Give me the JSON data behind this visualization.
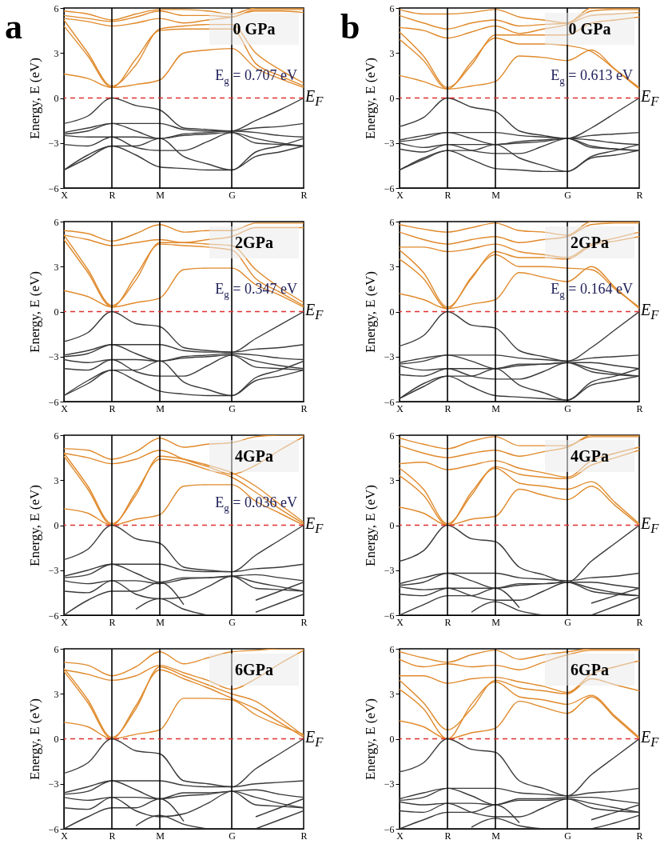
{
  "chart_data": [
    {
      "type": "line",
      "title": "0 GPa",
      "ylabel": "Energy, E (eV)",
      "categories": [
        "X",
        null,
        "R",
        null,
        "M",
        null,
        null,
        "G",
        null,
        null,
        "R"
      ],
      "ylim": [
        -6,
        6
      ],
      "yticks": [
        -6,
        -3,
        0,
        3,
        6
      ],
      "series": [
        {
          "color": "#e08a2c",
          "values": [
            1.6,
            1.3,
            0.7,
            0.9,
            1.2,
            3.0,
            3.2,
            3.3,
            2.0,
            1.3,
            0.7
          ]
        },
        {
          "color": "#e08a2c",
          "values": [
            4.8,
            2.8,
            0.7,
            2.6,
            4.5,
            4.6,
            4.6,
            4.6,
            2.3,
            1.5,
            0.8
          ]
        },
        {
          "color": "#e08a2c",
          "values": [
            5.2,
            3.0,
            0.8,
            2.2,
            4.6,
            4.8,
            4.9,
            4.9,
            3.0,
            1.9,
            1.0
          ]
        },
        {
          "color": "#e08a2c",
          "values": [
            5.3,
            5.1,
            4.8,
            5.0,
            5.3,
            5.0,
            5.2,
            5.4,
            5.8,
            5.8,
            5.7
          ]
        },
        {
          "color": "#e08a2c",
          "values": [
            5.5,
            5.3,
            5.1,
            5.4,
            5.8,
            5.5,
            5.5,
            5.4,
            5.9,
            5.9,
            5.9
          ]
        },
        {
          "color": "#e08a2c",
          "values": [
            5.8,
            5.6,
            5.2,
            5.6,
            5.9,
            5.9,
            5.8,
            5.6,
            6,
            6,
            6
          ]
        },
        {
          "color": "#3a3a3a",
          "values": [
            -1.7,
            -1.2,
            0,
            -0.5,
            -0.8,
            -2.0,
            -2.1,
            -2.2,
            -1.5,
            -0.8,
            0
          ]
        },
        {
          "color": "#3a3a3a",
          "values": [
            -2.3,
            -2.0,
            -1.7,
            -1.7,
            -1.7,
            -2.1,
            -2.2,
            -2.2,
            -2.0,
            -1.9,
            -1.7
          ]
        },
        {
          "color": "#3a3a3a",
          "values": [
            -2.4,
            -2.2,
            -1.7,
            -2.2,
            -2.7,
            -2.4,
            -2.3,
            -2.2,
            -2.3,
            -2.5,
            -2.6
          ]
        },
        {
          "color": "#3a3a3a",
          "values": [
            -2.5,
            -2.6,
            -2.6,
            -2.6,
            -2.7,
            -2.5,
            -2.4,
            -2.3,
            -2.7,
            -3.0,
            -3.2
          ]
        },
        {
          "color": "#3a3a3a",
          "values": [
            -3.1,
            -3.2,
            -2.6,
            -3.3,
            -3.5,
            -3.5,
            -2.9,
            -2.3,
            -3.0,
            -3.1,
            -3.2
          ]
        },
        {
          "color": "#3a3a3a",
          "values": [
            -4.8,
            -3.8,
            -3.2,
            -3.2,
            -2.7,
            -3.9,
            -4.4,
            -4.8,
            -3.6,
            -3.2,
            -2.7
          ]
        },
        {
          "color": "#3a3a3a",
          "values": [
            -4.8,
            -4.0,
            -3.2,
            -3.8,
            -4.6,
            -4.7,
            -4.8,
            -4.8,
            -3.9,
            -3.6,
            -3.2
          ]
        }
      ],
      "ref_lines": [
        {
          "axis": "x",
          "value": "R",
          "color": "#000000"
        },
        {
          "axis": "x",
          "value": "M",
          "color": "#000000"
        },
        {
          "axis": "x",
          "value": "G",
          "color": "#000000"
        },
        {
          "axis": "y",
          "value": 0,
          "label": "E$_{F}$",
          "color": "#e03030",
          "line_style": "dashed"
        }
      ],
      "subtitle": "a",
      "annotations": [
        "E$_{g}$ = 0.707 eV"
      ]
    },
    {
      "type": "line",
      "title": "0 GPa",
      "ylabel": "Energy, E (eV)",
      "categories": [
        "X",
        null,
        "R",
        null,
        "M",
        null,
        null,
        "G",
        null,
        null,
        "R"
      ],
      "ylim": [
        -6,
        6
      ],
      "yticks": [
        -6,
        -3,
        0,
        3,
        6
      ],
      "series": [
        {
          "color": "#e08a2c",
          "values": [
            1.5,
            1.1,
            0.6,
            0.8,
            1.1,
            2.8,
            2.7,
            2.5,
            3.2,
            1.9,
            0.6
          ]
        },
        {
          "color": "#e08a2c",
          "values": [
            3.9,
            2.5,
            0.6,
            2.4,
            4.0,
            3.6,
            3.6,
            3.5,
            3.1,
            1.9,
            0.7
          ]
        },
        {
          "color": "#e08a2c",
          "values": [
            4.4,
            2.8,
            0.7,
            2.2,
            4.2,
            4.2,
            4.2,
            4.2,
            5.0,
            5.2,
            5.4
          ]
        },
        {
          "color": "#e08a2c",
          "values": [
            4.7,
            4.5,
            4.0,
            4.4,
            4.8,
            4.3,
            4.6,
            4.9,
            5.5,
            5.6,
            5.7
          ]
        },
        {
          "color": "#e08a2c",
          "values": [
            5.5,
            5.0,
            4.6,
            5.0,
            5.2,
            4.8,
            4.9,
            5.0,
            5.8,
            5.9,
            5.9
          ]
        },
        {
          "color": "#e08a2c",
          "values": [
            5.9,
            5.6,
            5.6,
            5.7,
            5.9,
            5.4,
            5.2,
            5.0,
            6.0,
            6.0,
            6.0
          ]
        },
        {
          "color": "#3a3a3a",
          "values": [
            -1.9,
            -1.3,
            0,
            -0.6,
            -0.9,
            -2.2,
            -2.5,
            -2.7,
            -2.0,
            -1.0,
            0
          ]
        },
        {
          "color": "#3a3a3a",
          "values": [
            -2.8,
            -2.5,
            -2.3,
            -2.3,
            -2.3,
            -2.5,
            -2.6,
            -2.7,
            -2.5,
            -2.4,
            -2.3
          ]
        },
        {
          "color": "#3a3a3a",
          "values": [
            -2.9,
            -2.7,
            -2.3,
            -2.7,
            -3.1,
            -2.9,
            -2.8,
            -2.7,
            -2.8,
            -3.0,
            -3.1
          ]
        },
        {
          "color": "#3a3a3a",
          "values": [
            -3.0,
            -3.3,
            -3.1,
            -3.1,
            -3.1,
            -3.0,
            -2.9,
            -2.7,
            -3.2,
            -3.4,
            -3.5
          ]
        },
        {
          "color": "#3a3a3a",
          "values": [
            -3.4,
            -3.6,
            -3.1,
            -3.5,
            -3.7,
            -3.7,
            -3.2,
            -2.7,
            -3.3,
            -3.4,
            -3.5
          ]
        },
        {
          "color": "#3a3a3a",
          "values": [
            -4.8,
            -4.0,
            -3.5,
            -3.5,
            -3.1,
            -4.0,
            -4.5,
            -4.9,
            -3.9,
            -3.5,
            -3.1
          ]
        },
        {
          "color": "#3a3a3a",
          "values": [
            -4.8,
            -4.1,
            -3.5,
            -4.1,
            -4.7,
            -4.8,
            -4.9,
            -4.9,
            -4.0,
            -3.8,
            -3.5
          ]
        }
      ],
      "ref_lines": [
        {
          "axis": "x",
          "value": "R",
          "color": "#000000"
        },
        {
          "axis": "x",
          "value": "M",
          "color": "#000000"
        },
        {
          "axis": "x",
          "value": "G",
          "color": "#000000"
        },
        {
          "axis": "y",
          "value": 0,
          "label": "E$_{F}$",
          "color": "#e03030",
          "line_style": "dashed"
        }
      ],
      "subtitle": "b",
      "annotations": [
        "E$_{g}$ = 0.613 eV"
      ]
    },
    {
      "type": "line",
      "title": "2GPa",
      "ylabel": "Energy, E (eV)",
      "categories": [
        "X",
        null,
        "R",
        null,
        "M",
        null,
        null,
        "G",
        null,
        null,
        "R"
      ],
      "ylim": [
        -6,
        6
      ],
      "yticks": [
        -6,
        -3,
        0,
        3,
        6
      ],
      "series": [
        {
          "color": "#e08a2c",
          "values": [
            1.4,
            1.0,
            0.3,
            0.6,
            0.9,
            2.8,
            2.9,
            2.9,
            1.8,
            1.1,
            0.3
          ]
        },
        {
          "color": "#e08a2c",
          "values": [
            4.8,
            2.6,
            0.3,
            2.4,
            4.5,
            4.4,
            4.3,
            4.1,
            2.2,
            1.3,
            0.4
          ]
        },
        {
          "color": "#e08a2c",
          "values": [
            5.1,
            2.8,
            0.4,
            2.1,
            4.6,
            4.6,
            4.5,
            4.4,
            2.8,
            1.6,
            0.6
          ]
        },
        {
          "color": "#e08a2c",
          "values": [
            5.1,
            4.8,
            4.4,
            4.6,
            4.8,
            4.6,
            4.8,
            5.0,
            5.6,
            5.6,
            5.6
          ]
        },
        {
          "color": "#e08a2c",
          "values": [
            5.4,
            5.2,
            4.7,
            5.2,
            5.8,
            5.3,
            5.4,
            5.4,
            5.9,
            5.9,
            5.9
          ]
        },
        {
          "color": "#3a3a3a",
          "values": [
            -2.0,
            -1.4,
            0,
            -0.8,
            -1.0,
            -2.4,
            -2.6,
            -2.7,
            -1.8,
            -0.9,
            0
          ]
        },
        {
          "color": "#3a3a3a",
          "values": [
            -2.9,
            -2.6,
            -2.2,
            -2.2,
            -2.2,
            -2.6,
            -2.7,
            -2.7,
            -2.5,
            -2.4,
            -2.2
          ]
        },
        {
          "color": "#3a3a3a",
          "values": [
            -3.0,
            -2.8,
            -2.2,
            -2.8,
            -3.3,
            -3.0,
            -2.9,
            -2.8,
            -2.9,
            -3.1,
            -3.2
          ]
        },
        {
          "color": "#3a3a3a",
          "values": [
            -3.2,
            -3.4,
            -3.2,
            -3.2,
            -3.3,
            -3.1,
            -3.0,
            -2.9,
            -3.3,
            -3.6,
            -3.8
          ]
        },
        {
          "color": "#3a3a3a",
          "values": [
            -3.8,
            -3.9,
            -3.2,
            -4.0,
            -4.3,
            -4.3,
            -3.6,
            -2.9,
            -3.7,
            -3.8,
            -3.9
          ]
        },
        {
          "color": "#3a3a3a",
          "values": [
            -5.6,
            -4.6,
            -3.9,
            -3.9,
            -3.3,
            -4.7,
            -5.2,
            -5.6,
            -4.4,
            -3.9,
            -3.3
          ]
        },
        {
          "color": "#3a3a3a",
          "values": [
            -5.6,
            -4.8,
            -3.9,
            -4.6,
            -5.3,
            -5.5,
            -5.6,
            -5.6,
            -4.6,
            -4.3,
            -3.9
          ]
        }
      ],
      "ref_lines": [
        {
          "axis": "x",
          "value": "R",
          "color": "#000000"
        },
        {
          "axis": "x",
          "value": "M",
          "color": "#000000"
        },
        {
          "axis": "x",
          "value": "G",
          "color": "#000000"
        },
        {
          "axis": "y",
          "value": 0,
          "label": "E$_{F}$",
          "color": "#e03030",
          "line_style": "dashed"
        }
      ],
      "annotations": [
        "E$_{g}$ = 0.347 eV"
      ]
    },
    {
      "type": "line",
      "title": "2GPa",
      "ylabel": "Energy, E (eV)",
      "categories": [
        "X",
        null,
        "R",
        null,
        "M",
        null,
        null,
        "G",
        null,
        null,
        "R"
      ],
      "ylim": [
        -6,
        6
      ],
      "yticks": [
        -6,
        -3,
        0,
        3,
        6
      ],
      "series": [
        {
          "color": "#e08a2c",
          "values": [
            1.2,
            0.8,
            0.2,
            0.5,
            0.8,
            2.6,
            2.3,
            2.0,
            3.0,
            1.6,
            0.2
          ]
        },
        {
          "color": "#e08a2c",
          "values": [
            3.5,
            2.2,
            0.2,
            2.3,
            3.8,
            3.0,
            3.0,
            2.9,
            2.8,
            1.5,
            0.3
          ]
        },
        {
          "color": "#e08a2c",
          "values": [
            4.1,
            2.6,
            0.3,
            2.2,
            4.0,
            3.6,
            3.6,
            3.5,
            4.4,
            4.7,
            5.0
          ]
        },
        {
          "color": "#e08a2c",
          "values": [
            4.3,
            4.3,
            4.0,
            4.2,
            4.5,
            4.0,
            3.8,
            3.6,
            4.5,
            4.9,
            5.3
          ]
        },
        {
          "color": "#e08a2c",
          "values": [
            5.3,
            4.8,
            4.5,
            4.8,
            5.0,
            4.6,
            4.8,
            5.0,
            5.8,
            5.9,
            5.9
          ]
        },
        {
          "color": "#e08a2c",
          "values": [
            5.8,
            5.5,
            5.3,
            5.6,
            5.9,
            5.4,
            5.3,
            5.1,
            6.0,
            6.0,
            6.0
          ]
        },
        {
          "color": "#3a3a3a",
          "values": [
            -2.3,
            -1.6,
            0,
            -0.9,
            -1.1,
            -2.6,
            -3.0,
            -3.3,
            -2.4,
            -1.2,
            0
          ]
        },
        {
          "color": "#3a3a3a",
          "values": [
            -3.4,
            -3.1,
            -2.9,
            -2.9,
            -2.9,
            -3.1,
            -3.2,
            -3.3,
            -3.1,
            -3.0,
            -2.9
          ]
        },
        {
          "color": "#3a3a3a",
          "values": [
            -3.5,
            -3.3,
            -2.9,
            -3.3,
            -3.8,
            -3.5,
            -3.5,
            -3.4,
            -3.4,
            -3.6,
            -3.8
          ]
        },
        {
          "color": "#3a3a3a",
          "values": [
            -3.6,
            -3.9,
            -3.8,
            -3.8,
            -3.8,
            -3.6,
            -3.5,
            -3.4,
            -3.8,
            -4.1,
            -4.3
          ]
        },
        {
          "color": "#3a3a3a",
          "values": [
            -4.2,
            -4.3,
            -3.8,
            -4.3,
            -4.5,
            -4.5,
            -4.0,
            -3.4,
            -4.0,
            -4.2,
            -4.3
          ]
        },
        {
          "color": "#3a3a3a",
          "values": [
            -5.8,
            -4.8,
            -4.3,
            -4.3,
            -3.8,
            -4.9,
            -5.4,
            -5.9,
            -4.7,
            -4.3,
            -3.8
          ]
        },
        {
          "color": "#3a3a3a",
          "values": [
            -5.8,
            -5.0,
            -4.3,
            -5.0,
            -5.6,
            -5.7,
            -5.8,
            -5.9,
            -4.9,
            -4.6,
            -4.3
          ]
        }
      ],
      "ref_lines": [
        {
          "axis": "x",
          "value": "R",
          "color": "#000000"
        },
        {
          "axis": "x",
          "value": "M",
          "color": "#000000"
        },
        {
          "axis": "x",
          "value": "G",
          "color": "#000000"
        },
        {
          "axis": "y",
          "value": 0,
          "label": "E$_{F}$",
          "color": "#e03030",
          "line_style": "dashed"
        }
      ],
      "annotations": [
        "E$_{g}$ = 0.164 eV"
      ]
    },
    {
      "type": "line",
      "title": "4GPa",
      "ylabel": "Energy, E (eV)",
      "categories": [
        "X",
        null,
        "R",
        null,
        "M",
        null,
        null,
        "G",
        null,
        null,
        "R"
      ],
      "ylim": [
        -6,
        6
      ],
      "yticks": [
        -6,
        -3,
        0,
        3,
        6
      ],
      "series": [
        {
          "color": "#e08a2c",
          "values": [
            1.1,
            0.8,
            0,
            0.4,
            0.7,
            2.6,
            2.7,
            2.7,
            1.6,
            0.8,
            0
          ]
        },
        {
          "color": "#e08a2c",
          "values": [
            4.6,
            2.4,
            0,
            2.2,
            4.4,
            4.2,
            3.7,
            3.2,
            2.2,
            1.1,
            0.1
          ]
        },
        {
          "color": "#e08a2c",
          "values": [
            4.8,
            2.6,
            0.1,
            2.0,
            4.6,
            4.4,
            4.0,
            3.5,
            2.6,
            1.4,
            0.2
          ]
        },
        {
          "color": "#e08a2c",
          "values": [
            4.8,
            4.5,
            4.1,
            4.4,
            5.0,
            4.4,
            3.9,
            3.4,
            4.0,
            5.0,
            5.9
          ]
        },
        {
          "color": "#e08a2c",
          "values": [
            5.1,
            5.0,
            4.4,
            4.9,
            5.8,
            5.2,
            5.4,
            5.5,
            5.9,
            6.0,
            6.0
          ]
        },
        {
          "color": "#3a3a3a",
          "values": [
            -2.3,
            -1.6,
            0,
            -0.9,
            -1.2,
            -2.8,
            -3.0,
            -3.1,
            -2.0,
            -1.0,
            0
          ]
        },
        {
          "color": "#3a3a3a",
          "values": [
            -3.4,
            -3.0,
            -2.6,
            -2.6,
            -2.6,
            -3.0,
            -3.1,
            -3.1,
            -2.9,
            -2.8,
            -2.6
          ]
        },
        {
          "color": "#3a3a3a",
          "values": [
            -3.5,
            -3.3,
            -2.6,
            -3.2,
            -3.8,
            -3.5,
            -3.5,
            -3.4,
            -3.3,
            -3.5,
            -3.7
          ]
        },
        {
          "color": "#3a3a3a",
          "values": [
            -3.7,
            -3.9,
            -3.7,
            -3.7,
            -3.9,
            -3.6,
            -3.5,
            -3.4,
            -3.8,
            -4.1,
            -4.4
          ]
        },
        {
          "color": "#3a3a3a",
          "values": [
            -4.4,
            -4.5,
            -3.7,
            -4.6,
            -4.9,
            -4.8,
            -4.1,
            -3.4,
            -4.2,
            -4.3,
            -4.4
          ]
        },
        {
          "color": "#3a3a3a",
          "values": [
            -6,
            -5.0,
            -4.4,
            -4.4,
            -3.8,
            -5.3,
            null,
            null,
            -5.0,
            -4.4,
            -3.8
          ]
        },
        {
          "color": "#3a3a3a",
          "values": [
            null,
            null,
            null,
            -5.6,
            -4.9,
            -5.6,
            -6,
            null,
            -5.8,
            -5.2,
            -4.6
          ]
        }
      ],
      "ref_lines": [
        {
          "axis": "x",
          "value": "R",
          "color": "#000000"
        },
        {
          "axis": "x",
          "value": "M",
          "color": "#000000"
        },
        {
          "axis": "x",
          "value": "G",
          "color": "#000000"
        },
        {
          "axis": "y",
          "value": 0,
          "label": "E$_{F}$",
          "color": "#e03030",
          "line_style": "dashed"
        }
      ],
      "annotations": [
        "E$_{g}$ = 0.036 eV"
      ]
    },
    {
      "type": "line",
      "title": "4GPa",
      "ylabel": "Energy, E (eV)",
      "categories": [
        "X",
        null,
        "R",
        null,
        "M",
        null,
        null,
        "G",
        null,
        null,
        "R"
      ],
      "ylim": [
        -6,
        6
      ],
      "yticks": [
        -6,
        -3,
        0,
        3,
        6
      ],
      "series": [
        {
          "color": "#e08a2c",
          "values": [
            1.2,
            0.8,
            0,
            0.4,
            0.6,
            2.4,
            2.0,
            1.7,
            2.6,
            1.3,
            0
          ]
        },
        {
          "color": "#e08a2c",
          "values": [
            3.3,
            2.0,
            0,
            2.2,
            3.8,
            2.8,
            2.6,
            2.4,
            2.9,
            1.5,
            0.1
          ]
        },
        {
          "color": "#e08a2c",
          "values": [
            3.8,
            2.4,
            0.1,
            2.0,
            3.9,
            3.4,
            3.2,
            3.1,
            4.0,
            4.5,
            5.0
          ]
        },
        {
          "color": "#e08a2c",
          "values": [
            4.1,
            4.2,
            3.7,
            4.0,
            4.3,
            3.8,
            3.5,
            3.2,
            4.3,
            4.8,
            5.2
          ]
        },
        {
          "color": "#e08a2c",
          "values": [
            5.3,
            4.8,
            4.5,
            4.8,
            5.0,
            4.6,
            4.9,
            5.2,
            5.9,
            5.9,
            5.9
          ]
        },
        {
          "color": "#e08a2c",
          "values": [
            5.8,
            5.4,
            5.1,
            5.6,
            5.9,
            5.3,
            5.3,
            5.3,
            6.0,
            6.0,
            6.0
          ]
        },
        {
          "color": "#3a3a3a",
          "values": [
            -2.4,
            -1.7,
            0,
            -0.9,
            -1.1,
            -2.8,
            -3.3,
            -3.8,
            -2.4,
            -1.2,
            0
          ]
        },
        {
          "color": "#3a3a3a",
          "values": [
            -3.9,
            -3.5,
            -3.2,
            -3.2,
            -3.2,
            -3.5,
            -3.6,
            -3.7,
            -3.5,
            -3.4,
            -3.2
          ]
        },
        {
          "color": "#3a3a3a",
          "values": [
            -4.0,
            -3.8,
            -3.2,
            -3.7,
            -4.2,
            -3.9,
            -3.9,
            -3.8,
            -3.8,
            -4.0,
            -4.2
          ]
        },
        {
          "color": "#3a3a3a",
          "values": [
            -4.1,
            -4.3,
            -4.2,
            -4.2,
            -4.2,
            -4.0,
            -3.9,
            -3.8,
            -4.2,
            -4.5,
            -4.7
          ]
        },
        {
          "color": "#3a3a3a",
          "values": [
            -4.6,
            -4.7,
            -4.2,
            -4.7,
            -5.0,
            -5.0,
            -4.4,
            -3.8,
            -4.4,
            -4.6,
            -4.7
          ]
        },
        {
          "color": "#3a3a3a",
          "values": [
            -6,
            -5.3,
            -4.7,
            -4.7,
            -4.2,
            -5.5,
            null,
            null,
            -5.2,
            -4.7,
            -4.2
          ]
        },
        {
          "color": "#3a3a3a",
          "values": [
            null,
            null,
            null,
            -5.8,
            -5.1,
            -5.7,
            -6,
            null,
            -6,
            -5.4,
            -4.8
          ]
        }
      ],
      "ref_lines": [
        {
          "axis": "x",
          "value": "R",
          "color": "#000000"
        },
        {
          "axis": "x",
          "value": "M",
          "color": "#000000"
        },
        {
          "axis": "x",
          "value": "G",
          "color": "#000000"
        },
        {
          "axis": "y",
          "value": 0,
          "label": "E$_{F}$",
          "color": "#e03030",
          "line_style": "dashed"
        }
      ]
    },
    {
      "type": "line",
      "title": "6GPa",
      "ylabel": "Energy, E (eV)",
      "categories": [
        "X",
        null,
        "R",
        null,
        "M",
        null,
        null,
        "G",
        null,
        null,
        "R"
      ],
      "ylim": [
        -6,
        6
      ],
      "yticks": [
        -6,
        -3,
        0,
        3,
        6
      ],
      "series": [
        {
          "color": "#e08a2c",
          "values": [
            1.1,
            0.8,
            0,
            0.3,
            0.6,
            2.7,
            2.7,
            2.6,
            1.6,
            0.9,
            0.3
          ]
        },
        {
          "color": "#e08a2c",
          "values": [
            4.5,
            2.4,
            0,
            2.2,
            4.6,
            4.0,
            3.4,
            2.7,
            2.0,
            1.1,
            0.1
          ]
        },
        {
          "color": "#e08a2c",
          "values": [
            4.7,
            2.6,
            0.1,
            2.0,
            4.8,
            4.2,
            3.6,
            3.0,
            2.5,
            1.4,
            0.2
          ]
        },
        {
          "color": "#e08a2c",
          "values": [
            4.6,
            4.3,
            3.9,
            4.2,
            4.9,
            4.4,
            3.9,
            3.3,
            4.0,
            5.0,
            5.9
          ]
        },
        {
          "color": "#e08a2c",
          "values": [
            5.1,
            4.9,
            4.2,
            4.8,
            5.8,
            5.0,
            5.4,
            5.8,
            5.9,
            6.0,
            6.0
          ]
        },
        {
          "color": "#3a3a3a",
          "values": [
            -2.3,
            -1.6,
            0,
            -0.8,
            -1.0,
            -2.8,
            -3.0,
            -3.2,
            -2.0,
            -1.0,
            0
          ]
        },
        {
          "color": "#3a3a3a",
          "values": [
            -3.6,
            -3.2,
            -2.8,
            -2.8,
            -2.8,
            -3.1,
            -3.2,
            -3.2,
            -3.0,
            -2.9,
            -2.8
          ]
        },
        {
          "color": "#3a3a3a",
          "values": [
            -3.7,
            -3.5,
            -2.8,
            -3.4,
            -4.0,
            -3.6,
            -3.6,
            -3.5,
            -3.4,
            -3.7,
            -3.9
          ]
        },
        {
          "color": "#3a3a3a",
          "values": [
            -3.9,
            -4.1,
            -3.9,
            -3.9,
            -4.0,
            -3.8,
            -3.7,
            -3.5,
            -3.9,
            -4.3,
            -4.6
          ]
        },
        {
          "color": "#3a3a3a",
          "values": [
            -4.6,
            -4.7,
            -3.9,
            -4.8,
            -5.2,
            -5.0,
            -4.3,
            -3.5,
            -4.4,
            -4.5,
            -4.6
          ]
        },
        {
          "color": "#3a3a3a",
          "values": [
            -6,
            -5.2,
            -4.6,
            -4.6,
            -4.0,
            -5.5,
            null,
            null,
            -5.2,
            -4.6,
            -4.0
          ]
        },
        {
          "color": "#3a3a3a",
          "values": [
            null,
            null,
            null,
            -5.8,
            -5.1,
            -5.7,
            -6,
            null,
            -6,
            -5.4,
            -4.8
          ]
        }
      ],
      "ref_lines": [
        {
          "axis": "x",
          "value": "R",
          "color": "#000000"
        },
        {
          "axis": "x",
          "value": "M",
          "color": "#000000"
        },
        {
          "axis": "x",
          "value": "G",
          "color": "#000000"
        },
        {
          "axis": "y",
          "value": 0,
          "label": "E$_{F}$",
          "color": "#e03030",
          "line_style": "dashed"
        }
      ]
    },
    {
      "type": "line",
      "title": "6GPa",
      "ylabel": "Energy, E (eV)",
      "categories": [
        "X",
        null,
        "R",
        null,
        "M",
        null,
        null,
        "G",
        null,
        null,
        "R"
      ],
      "ylim": [
        -6,
        6
      ],
      "yticks": [
        -6,
        -3,
        0,
        3,
        6
      ],
      "series": [
        {
          "color": "#e08a2c",
          "values": [
            1.2,
            0.8,
            0,
            0.4,
            0.7,
            2.5,
            2.1,
            1.7,
            2.8,
            1.4,
            0
          ]
        },
        {
          "color": "#e08a2c",
          "values": [
            3.3,
            2.0,
            0,
            2.3,
            3.8,
            2.8,
            2.6,
            2.3,
            2.9,
            1.5,
            0.1
          ]
        },
        {
          "color": "#e08a2c",
          "values": [
            3.9,
            2.4,
            0.6,
            2.0,
            3.9,
            3.4,
            3.2,
            3.0,
            4.0,
            3.6,
            3.2
          ]
        },
        {
          "color": "#e08a2c",
          "values": [
            4.2,
            4.2,
            3.7,
            4.0,
            4.1,
            3.8,
            3.5,
            3.1,
            4.3,
            4.8,
            5.2
          ]
        },
        {
          "color": "#e08a2c",
          "values": [
            5.3,
            4.8,
            5.0,
            4.8,
            4.9,
            4.6,
            5.1,
            5.6,
            5.9,
            5.9,
            5.9
          ]
        },
        {
          "color": "#e08a2c",
          "values": [
            5.8,
            5.4,
            5.1,
            5.6,
            5.9,
            5.3,
            5.6,
            5.8,
            6.0,
            6.0,
            6.0
          ]
        },
        {
          "color": "#3a3a3a",
          "values": [
            -2.2,
            -1.6,
            0,
            -0.7,
            -0.9,
            -2.8,
            -3.3,
            -3.8,
            -2.4,
            -1.2,
            0
          ]
        },
        {
          "color": "#3a3a3a",
          "values": [
            -4.0,
            -3.6,
            -3.3,
            -3.3,
            -3.3,
            -3.6,
            -3.7,
            -3.8,
            -3.6,
            -3.5,
            -3.3
          ]
        },
        {
          "color": "#3a3a3a",
          "values": [
            -4.1,
            -3.9,
            -3.3,
            -3.8,
            -4.4,
            -4.0,
            -4.0,
            -3.9,
            -3.9,
            -4.1,
            -4.3
          ]
        },
        {
          "color": "#3a3a3a",
          "values": [
            -4.2,
            -4.4,
            -4.3,
            -4.3,
            -4.4,
            -4.1,
            -4.1,
            -4.0,
            -4.3,
            -4.6,
            -4.9
          ]
        },
        {
          "color": "#3a3a3a",
          "values": [
            -4.8,
            -4.9,
            -4.3,
            -4.9,
            -5.2,
            -5.2,
            -4.6,
            -4.0,
            -4.6,
            -4.8,
            -4.9
          ]
        },
        {
          "color": "#3a3a3a",
          "values": [
            -6,
            -5.4,
            -4.9,
            -4.9,
            -4.4,
            -5.6,
            null,
            null,
            -5.4,
            -4.9,
            -4.4
          ]
        },
        {
          "color": "#3a3a3a",
          "values": [
            null,
            null,
            null,
            -5.9,
            -5.3,
            -5.8,
            -6,
            null,
            -6,
            -5.6,
            -5.1
          ]
        }
      ],
      "ref_lines": [
        {
          "axis": "x",
          "value": "R",
          "color": "#000000"
        },
        {
          "axis": "x",
          "value": "M",
          "color": "#000000"
        },
        {
          "axis": "x",
          "value": "G",
          "color": "#000000"
        },
        {
          "axis": "y",
          "value": 0,
          "label": "E$_{F}$",
          "color": "#e03030",
          "line_style": "dashed"
        }
      ]
    }
  ]
}
